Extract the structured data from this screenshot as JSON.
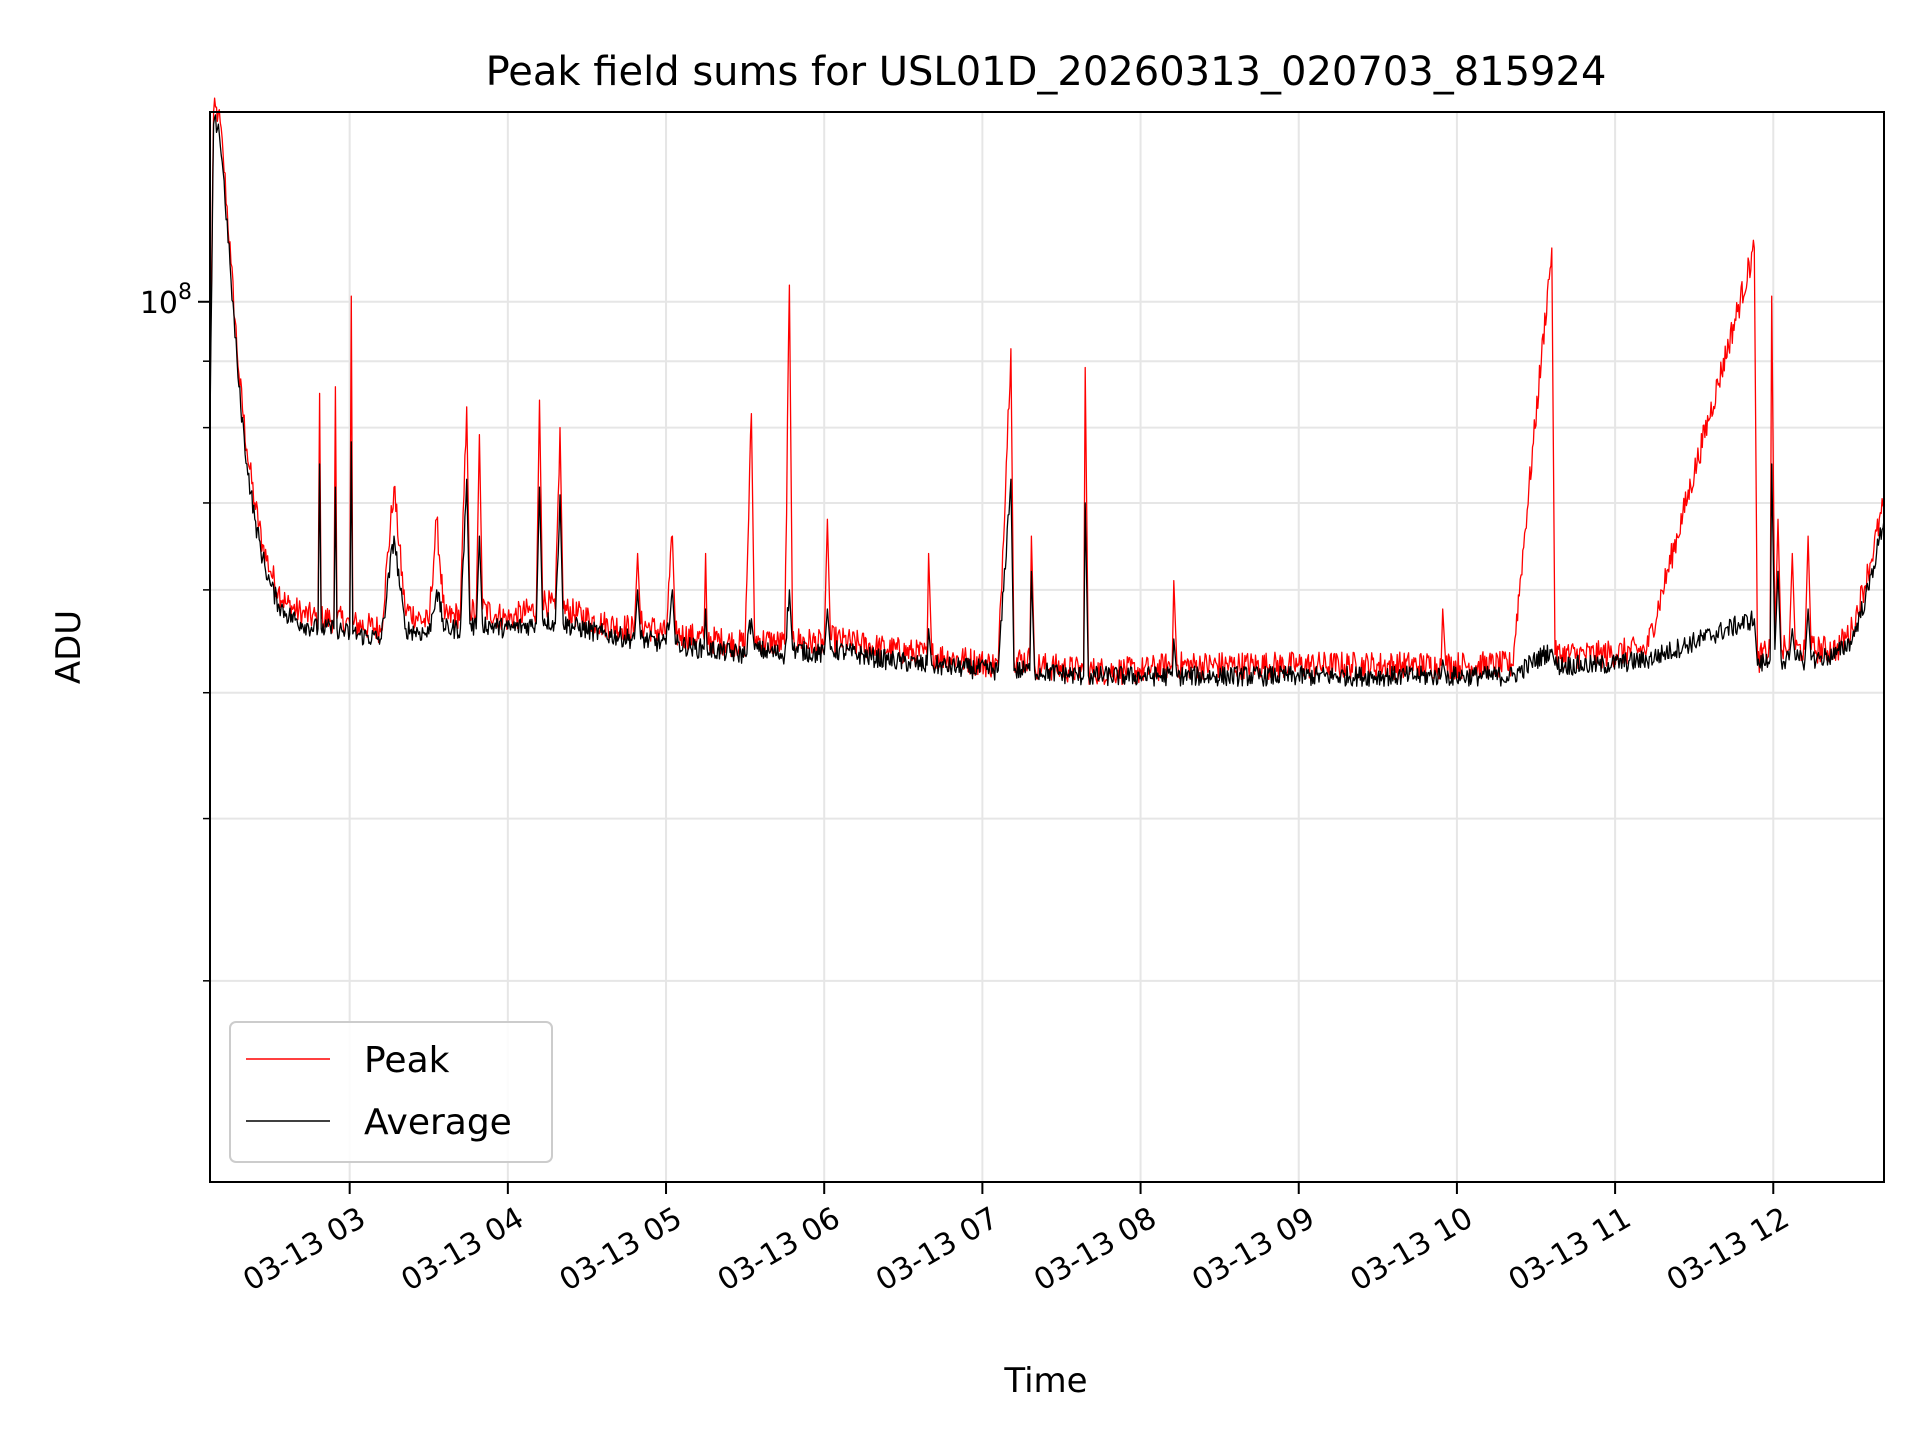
{
  "chart_data": {
    "type": "line",
    "title": "Peak field sums for USL01D_20260313_020703_815924",
    "xlabel": "Time",
    "ylabel": "ADU",
    "x_ticks": [
      "03-13 03",
      "03-13 04",
      "03-13 05",
      "03-13 06",
      "03-13 07",
      "03-13 08",
      "03-13 09",
      "03-13 10",
      "03-13 11",
      "03-13 12"
    ],
    "x_tick_hours": [
      3,
      4,
      5,
      6,
      7,
      8,
      9,
      10,
      11,
      12
    ],
    "xlim_hours": [
      2.117,
      12.7
    ],
    "y_scale": "log",
    "ylim": [
      21000000,
      140000000
    ],
    "y_major_ticks": [
      {
        "value": 100000000,
        "base": "10",
        "exp": "8"
      }
    ],
    "y_minor_ticks": [
      30000000,
      40000000,
      50000000,
      60000000,
      70000000,
      80000000,
      90000000
    ],
    "grid": true,
    "legend": {
      "position": "lower-left"
    },
    "series": [
      {
        "name": "Peak",
        "color": "#ff0000",
        "points": [
          [
            2.117,
            85000000
          ],
          [
            2.14,
            140000000
          ],
          [
            2.17,
            140000000
          ],
          [
            2.2,
            130000000
          ],
          [
            2.25,
            107000000
          ],
          [
            2.3,
            88000000
          ],
          [
            2.35,
            77000000
          ],
          [
            2.4,
            70000000
          ],
          [
            2.45,
            65000000
          ],
          [
            2.5,
            62000000
          ],
          [
            2.55,
            60000000
          ],
          [
            2.6,
            58500000
          ],
          [
            2.7,
            57500000
          ],
          [
            2.8,
            57000000
          ],
          [
            2.81,
            85000000
          ],
          [
            2.82,
            57000000
          ],
          [
            2.9,
            57000000
          ],
          [
            2.91,
            86000000
          ],
          [
            2.92,
            57000000
          ],
          [
            3.0,
            56500000
          ],
          [
            3.01,
            101000000
          ],
          [
            3.02,
            56500000
          ],
          [
            3.2,
            56000000
          ],
          [
            3.28,
            72000000
          ],
          [
            3.35,
            58000000
          ],
          [
            3.5,
            56500000
          ],
          [
            3.55,
            68000000
          ],
          [
            3.6,
            57000000
          ],
          [
            3.7,
            57500000
          ],
          [
            3.74,
            83000000
          ],
          [
            3.76,
            58000000
          ],
          [
            3.8,
            57500000
          ],
          [
            3.82,
            79000000
          ],
          [
            3.84,
            58000000
          ],
          [
            4.0,
            57000000
          ],
          [
            4.18,
            58000000
          ],
          [
            4.2,
            84000000
          ],
          [
            4.22,
            59000000
          ],
          [
            4.3,
            58000000
          ],
          [
            4.33,
            80000000
          ],
          [
            4.35,
            58000000
          ],
          [
            4.6,
            56500000
          ],
          [
            4.8,
            56000000
          ],
          [
            4.82,
            64000000
          ],
          [
            4.84,
            56500000
          ],
          [
            5.0,
            55500000
          ],
          [
            5.04,
            66000000
          ],
          [
            5.06,
            55500000
          ],
          [
            5.24,
            55000000
          ],
          [
            5.25,
            64000000
          ],
          [
            5.26,
            55000000
          ],
          [
            5.5,
            54500000
          ],
          [
            5.54,
            82000000
          ],
          [
            5.56,
            55000000
          ],
          [
            5.75,
            54500000
          ],
          [
            5.78,
            103000000
          ],
          [
            5.8,
            55000000
          ],
          [
            6.0,
            54500000
          ],
          [
            6.02,
            68000000
          ],
          [
            6.04,
            55000000
          ],
          [
            6.4,
            54000000
          ],
          [
            6.65,
            53500000
          ],
          [
            6.66,
            64000000
          ],
          [
            6.68,
            53500000
          ],
          [
            7.1,
            52500000
          ],
          [
            7.18,
            92000000
          ],
          [
            7.2,
            53000000
          ],
          [
            7.3,
            53000000
          ],
          [
            7.31,
            66000000
          ],
          [
            7.33,
            52500000
          ],
          [
            7.64,
            52000000
          ],
          [
            7.65,
            89000000
          ],
          [
            7.67,
            52000000
          ],
          [
            8.0,
            52000000
          ],
          [
            8.2,
            52500000
          ],
          [
            8.21,
            61000000
          ],
          [
            8.23,
            52500000
          ],
          [
            9.0,
            52500000
          ],
          [
            9.5,
            52500000
          ],
          [
            9.9,
            52500000
          ],
          [
            9.91,
            58000000
          ],
          [
            9.93,
            52500000
          ],
          [
            10.35,
            52500000
          ],
          [
            10.6,
            110000000
          ],
          [
            10.62,
            53500000
          ],
          [
            10.9,
            53500000
          ],
          [
            11.2,
            54000000
          ],
          [
            11.88,
            110000000
          ],
          [
            11.9,
            53000000
          ],
          [
            11.98,
            54000000
          ],
          [
            11.99,
            101000000
          ],
          [
            12.01,
            55000000
          ],
          [
            12.03,
            68000000
          ],
          [
            12.05,
            54000000
          ],
          [
            12.1,
            54000000
          ],
          [
            12.12,
            64000000
          ],
          [
            12.14,
            54000000
          ],
          [
            12.2,
            54000000
          ],
          [
            12.22,
            66000000
          ],
          [
            12.24,
            54000000
          ],
          [
            12.4,
            54000000
          ],
          [
            12.5,
            56000000
          ],
          [
            12.6,
            62000000
          ],
          [
            12.7,
            70000000
          ]
        ]
      },
      {
        "name": "Average",
        "color": "#000000",
        "points": [
          [
            2.117,
            80000000
          ],
          [
            2.14,
            137000000
          ],
          [
            2.17,
            137000000
          ],
          [
            2.2,
            126000000
          ],
          [
            2.25,
            104000000
          ],
          [
            2.3,
            86000000
          ],
          [
            2.35,
            75000000
          ],
          [
            2.4,
            68000000
          ],
          [
            2.45,
            63500000
          ],
          [
            2.5,
            60500000
          ],
          [
            2.55,
            58500000
          ],
          [
            2.6,
            57500000
          ],
          [
            2.7,
            56500000
          ],
          [
            2.8,
            56000000
          ],
          [
            2.81,
            75000000
          ],
          [
            2.82,
            56000000
          ],
          [
            2.9,
            56000000
          ],
          [
            2.91,
            72000000
          ],
          [
            2.92,
            56000000
          ],
          [
            3.0,
            55500000
          ],
          [
            3.01,
            78000000
          ],
          [
            3.02,
            55500000
          ],
          [
            3.2,
            55000000
          ],
          [
            3.28,
            66000000
          ],
          [
            3.35,
            56000000
          ],
          [
            3.5,
            55500000
          ],
          [
            3.55,
            60000000
          ],
          [
            3.6,
            56000000
          ],
          [
            3.7,
            56000000
          ],
          [
            3.74,
            73000000
          ],
          [
            3.76,
            56500000
          ],
          [
            3.8,
            56000000
          ],
          [
            3.82,
            66000000
          ],
          [
            3.84,
            56500000
          ],
          [
            4.0,
            56000000
          ],
          [
            4.18,
            56500000
          ],
          [
            4.2,
            72000000
          ],
          [
            4.22,
            57000000
          ],
          [
            4.3,
            56500000
          ],
          [
            4.33,
            71000000
          ],
          [
            4.35,
            56500000
          ],
          [
            4.6,
            55500000
          ],
          [
            4.8,
            55000000
          ],
          [
            4.82,
            60000000
          ],
          [
            4.84,
            55000000
          ],
          [
            5.0,
            54500000
          ],
          [
            5.04,
            60000000
          ],
          [
            5.06,
            54500000
          ],
          [
            5.24,
            54000000
          ],
          [
            5.25,
            58000000
          ],
          [
            5.26,
            54000000
          ],
          [
            5.5,
            53500000
          ],
          [
            5.54,
            57000000
          ],
          [
            5.56,
            54000000
          ],
          [
            5.75,
            53500000
          ],
          [
            5.78,
            60000000
          ],
          [
            5.8,
            54000000
          ],
          [
            6.0,
            53500000
          ],
          [
            6.02,
            58000000
          ],
          [
            6.04,
            54000000
          ],
          [
            6.4,
            53000000
          ],
          [
            6.65,
            52500000
          ],
          [
            6.66,
            56000000
          ],
          [
            6.68,
            52500000
          ],
          [
            7.1,
            52000000
          ],
          [
            7.18,
            73000000
          ],
          [
            7.2,
            52000000
          ],
          [
            7.3,
            52000000
          ],
          [
            7.31,
            62000000
          ],
          [
            7.33,
            52000000
          ],
          [
            7.64,
            51500000
          ],
          [
            7.65,
            70000000
          ],
          [
            7.67,
            51500000
          ],
          [
            8.0,
            51500000
          ],
          [
            8.2,
            51500000
          ],
          [
            8.21,
            55000000
          ],
          [
            8.23,
            51500000
          ],
          [
            9.0,
            51500000
          ],
          [
            9.5,
            51500000
          ],
          [
            9.9,
            51500000
          ],
          [
            9.91,
            53000000
          ],
          [
            9.93,
            51500000
          ],
          [
            10.35,
            51500000
          ],
          [
            10.6,
            54000000
          ],
          [
            10.62,
            52500000
          ],
          [
            10.9,
            52500000
          ],
          [
            11.2,
            53000000
          ],
          [
            11.88,
            57000000
          ],
          [
            11.9,
            52500000
          ],
          [
            11.98,
            53000000
          ],
          [
            11.99,
            75000000
          ],
          [
            12.01,
            54000000
          ],
          [
            12.03,
            62000000
          ],
          [
            12.05,
            53000000
          ],
          [
            12.1,
            53000000
          ],
          [
            12.12,
            56000000
          ],
          [
            12.14,
            53000000
          ],
          [
            12.2,
            53000000
          ],
          [
            12.22,
            58000000
          ],
          [
            12.24,
            53000000
          ],
          [
            12.4,
            53500000
          ],
          [
            12.5,
            55000000
          ],
          [
            12.6,
            60000000
          ],
          [
            12.7,
            68000000
          ]
        ]
      }
    ]
  }
}
